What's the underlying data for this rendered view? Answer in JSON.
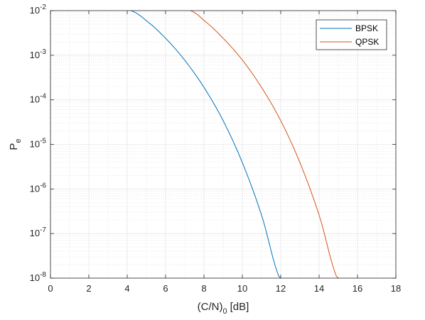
{
  "chart_data": {
    "type": "line",
    "xlabel": {
      "main": "(C/N)",
      "sub": "0",
      "unit": "[dB]"
    },
    "ylabel": {
      "main": "P",
      "sub": "e"
    },
    "xlim": [
      0,
      18
    ],
    "ylim": [
      1e-08,
      0.01
    ],
    "yscale": "log",
    "grid": true,
    "minor_grid": true,
    "legend_position": "top-right",
    "x_ticks": [
      0,
      2,
      4,
      6,
      8,
      10,
      12,
      14,
      16,
      18
    ],
    "y_ticks": [
      {
        "value": 1e-08,
        "base": "10",
        "exp": "-8"
      },
      {
        "value": 1e-07,
        "base": "10",
        "exp": "-7"
      },
      {
        "value": 1e-06,
        "base": "10",
        "exp": "-6"
      },
      {
        "value": 1e-05,
        "base": "10",
        "exp": "-5"
      },
      {
        "value": 0.0001,
        "base": "10",
        "exp": "-4"
      },
      {
        "value": 0.001,
        "base": "10",
        "exp": "-3"
      },
      {
        "value": 0.01,
        "base": "10",
        "exp": "-2"
      }
    ],
    "series": [
      {
        "name": "BPSK",
        "color": "#0072BD",
        "x": [
          4.2,
          5.0,
          6.0,
          7.0,
          8.0,
          9.0,
          10.0,
          11.0,
          12.0
        ],
        "y": [
          0.01,
          0.0059,
          0.0024,
          0.00077,
          0.00019,
          3.4e-05,
          3.9e-06,
          2.6e-07,
          9e-09
        ]
      },
      {
        "name": "QPSK",
        "color": "#D95319",
        "x": [
          7.3,
          8.0,
          9.0,
          10.0,
          11.0,
          12.0,
          13.0,
          14.0,
          15.0
        ],
        "y": [
          0.01,
          0.006,
          0.0024,
          0.00078,
          0.00019,
          3.4e-05,
          3.9e-06,
          2.6e-07,
          9e-09
        ]
      }
    ]
  }
}
